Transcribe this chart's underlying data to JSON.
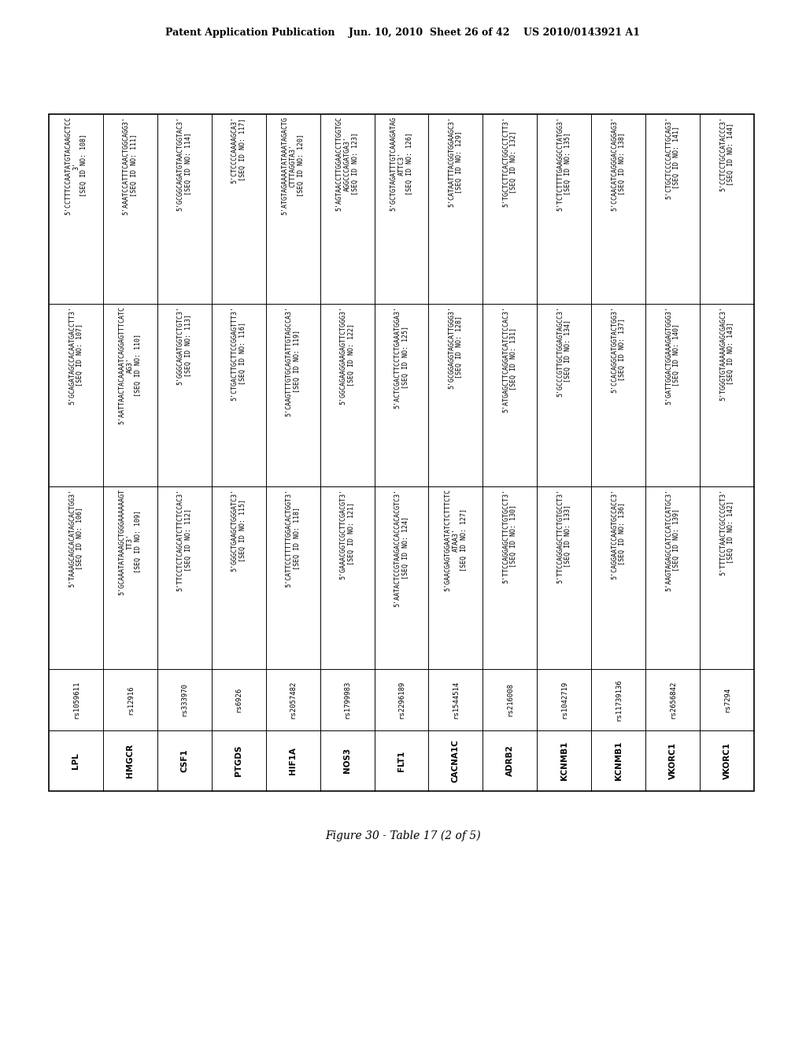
{
  "header_text": "Patent Application Publication    Jun. 10, 2010  Sheet 26 of 42    US 2010/0143921 A1",
  "figure_caption": "Figure 30 - Table 17 (2 of 5)",
  "columns": [
    {
      "gene": "LPL",
      "snp": "rs1059611",
      "seq1": "5'TAAAGCAGCACATAGCACTGG3'\n[SEQ ID NO: 106]",
      "seq2": "5'GCAGATAGCCACAATGACCTT3'\n[SEQ ID NO: 107]",
      "seq3": "5'CCTTTCCAATATGTACAAGCTCC\n3'\n[SEQ ID NO: 108]"
    },
    {
      "gene": "HMGCR",
      "snp": "rs12916",
      "seq1": "5'GCAAATATAAAGCTGGGAAAAAAGT\nTT3'\n[SEQ ID NO: 109]",
      "seq2": "5'AATTAACTACAAAATCAGGAGTTTCATC\nAG3'\n[SEQ ID NO: 110]",
      "seq3": "5'AAATCCATTTCAACTGGCAGG3'\n[SEQ ID NO: 111]"
    },
    {
      "gene": "CSF1",
      "snp": "rs333970",
      "seq1": "5'TTCCTCTCAGCATCTTCTCCAC3'\n[SEQ ID NO: 112]",
      "seq2": "5'GGGCAGATGGTCTGTC3'\n[SEQ ID NO: 113]",
      "seq3": "5'GCGGCAGATGTAACTGGTAC3'\n[SEQ ID NO: 114]"
    },
    {
      "gene": "PTGDS",
      "snp": "rs6926",
      "seq1": "5'GGGCTGAAGCTGGGATC3'\n[SEQ ID NO: 115]",
      "seq2": "5'CTGACTTGCTTCCGGAGTTT3'\n[SEQ ID NO: 116]",
      "seq3": "5'CTCCCCAAAAGCA3'\n[SEQ ID NO: 117]"
    },
    {
      "gene": "HIF1A",
      "snp": "rs2057482",
      "seq1": "5'CATTCCTTTTTGGACACTGGT3'\n[SEQ ID NO: 118]",
      "seq2": "5'CAAGTTTGTGCAGTATTGTAGCCA3'\n[SEQ ID NO: 119]",
      "seq3": "5'ATGTAGAAAATATAAATAGACTG\nCTTTAGGTA3'\n[SEQ ID NO: 120]"
    },
    {
      "gene": "NOS3",
      "snp": "rs1799983",
      "seq1": "5'GAAACGGTCGCTTCGACGT3'\n[SEQ ID NO: 121]",
      "seq2": "5'GGCAGAAGGAAGAGTTCTGGG3'\n[SEQ ID NO: 122]",
      "seq3": "5'AGTAACCTTGGAACCTTGGTGC\nAGGCCCAGATGA3'\n[SEQ ID NO: 123]"
    },
    {
      "gene": "FLT1",
      "snp": "rs2296189",
      "seq1": "5'AATACTCCGTAAGACCACCACACGTC3'\n[SEQ ID NO: 124]",
      "seq2": "5'ACTCGACTTCCTCTGAAATGGA3'\n[SEQ ID NO: 125]",
      "seq3": "5'GCTGTAGATTTGTCAAAGATAG\nATTC3'\n[SEQ ID NO: 126]"
    },
    {
      "gene": "CACNA1C",
      "snp": "rs1544514",
      "seq1": "5'GAACGAGTGGAATATCTCTTTCTC\nATAA3'\n[SEQ ID NO: 127]",
      "seq2": "5'GCGGAGGTAGCATTGGG3'\n[SEQ ID NO: 128]",
      "seq3": "5'CATAATTTACGGTGGAAGC3'\n[SEQ ID NO: 129]"
    },
    {
      "gene": "ADRB2",
      "snp": "rs216008",
      "seq1": "5'TTCCAGGAGCTTCTGTGCCT3'\n[SEQ ID NO: 130]",
      "seq2": "5'ATGAGCTTCAGGATCATCTCCAC3'\n[SEQ ID NO: 131]",
      "seq3": "5'TGCTCTTCACTGGCCTCTT3'\n[SEQ ID NO: 132]"
    },
    {
      "gene": "KCNMB1",
      "snp": "rs1042719",
      "seq1": "5'TTCCAGGAGCTTCTGTGCCT3'\n[SEQ ID NO: 133]",
      "seq2": "5'GCCCGTTGCTGGAGTAGCC3'\n[SEQ ID NO: 134]",
      "seq3": "5'TCTCTTTTGAAGGCCTATGG3'\n[SEQ ID NO: 135]"
    },
    {
      "gene": "KCNMB1",
      "snp": "rs11739136",
      "seq1": "5'CAGGAATCCAAGTGCCACC3'\n[SEQ ID NO: 136]",
      "seq2": "5'CCACAGGCATGGTACTGG3'\n[SEQ ID NO: 137]",
      "seq3": "5'CCAACATCAGGGACCAGGAG3'\n[SEQ ID NO: 138]"
    },
    {
      "gene": "VKORC1",
      "snp": "rs2656842",
      "seq1": "5'AAGTAGAGCCATCCATCCATGC3'\n[SEQ ID NO: 139]",
      "seq2": "5'GATTGGACTGGAAAGAGTGGG3'\n[SEQ ID NO: 140]",
      "seq3": "5'CTGCTCCCCACTTGCAG3'\n[SEQ ID NO: 141]"
    },
    {
      "gene": "VKORC1",
      "snp": "rs7294",
      "seq1": "5'TTTCCTAACTCGCCCGCT3'\n[SEQ ID NO: 142]",
      "seq2": "5'TGGGTGTAAAAAGAGCGAGC3'\n[SEQ ID NO: 143]",
      "seq3": "5'CCTCCTGCCATACCC3'\n[SEQ ID NO: 144]"
    }
  ],
  "background_color": "#ffffff",
  "text_color": "#000000",
  "header_fontsize": 9,
  "seq_fontsize": 6.0,
  "snp_fontsize": 6.5,
  "gene_fontsize": 7.5,
  "title_fontsize": 10
}
